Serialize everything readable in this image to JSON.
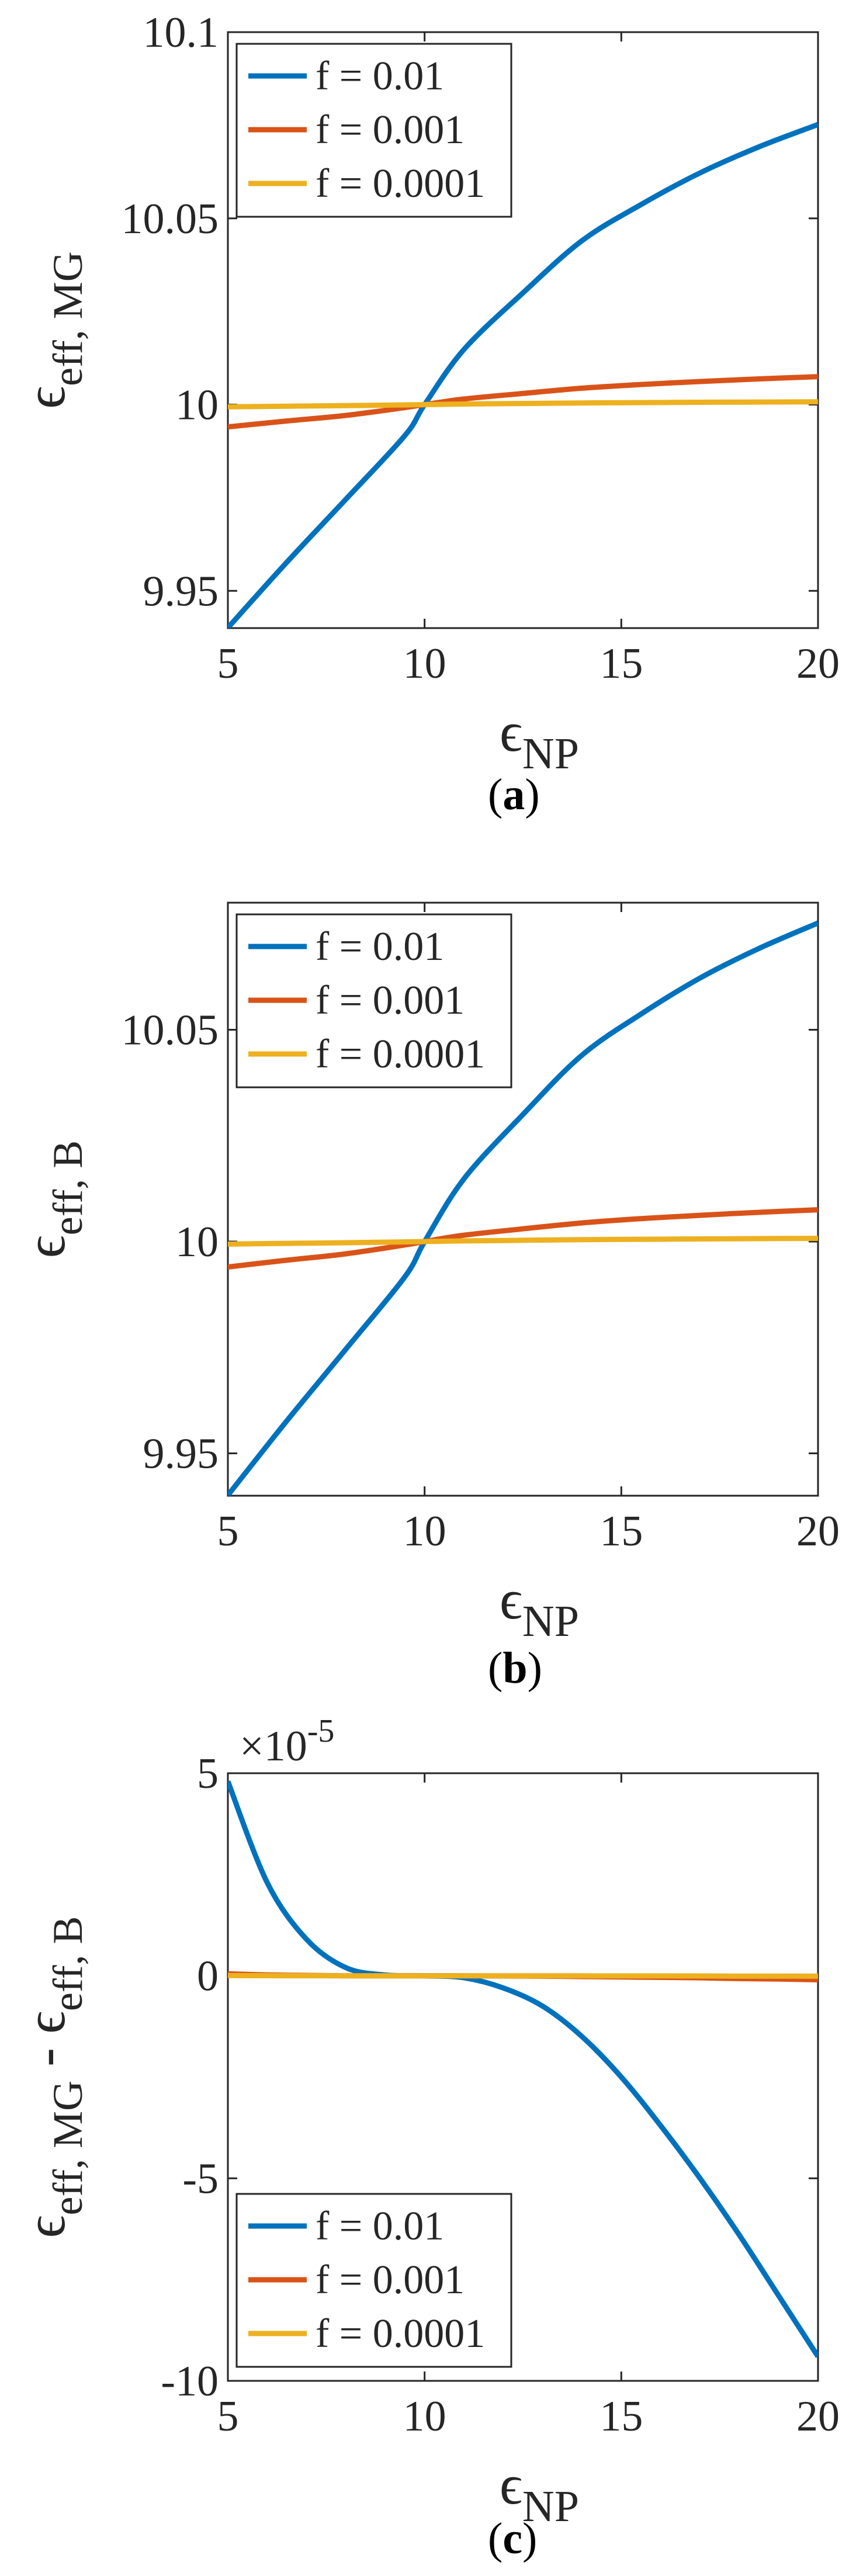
{
  "chart_data": [
    {
      "type": "line",
      "panel_label": "a",
      "xlabel": "ϵ",
      "xlabel_sub": "NP",
      "ylabel": "ϵ",
      "ylabel_sub": "eff, MG",
      "xlim": [
        5,
        20
      ],
      "ylim": [
        9.94,
        10.1
      ],
      "xticks": [
        5,
        10,
        15,
        20
      ],
      "xtick_labels": [
        "5",
        "10",
        "15",
        "20"
      ],
      "yticks": [
        9.95,
        10,
        10.05,
        10.1
      ],
      "ytick_labels": [
        "9.95",
        "10",
        "10.05",
        "10.1"
      ],
      "exponent_label": "",
      "legend_position": "top-left",
      "x": [
        5,
        6.5,
        8,
        9.5,
        10,
        11,
        12.5,
        14,
        15.5,
        17,
        18.5,
        20
      ],
      "series": [
        {
          "name": "f = 0.01",
          "color": "#0072BD",
          "values": [
            9.9401,
            9.9577,
            9.9746,
            9.9917,
            10.0,
            10.0148,
            10.03,
            10.044,
            10.0537,
            10.0622,
            10.0692,
            10.0752
          ]
        },
        {
          "name": "f = 0.001",
          "color": "#D95319",
          "values": [
            9.994,
            9.9956,
            9.9971,
            9.9992,
            10.0,
            10.0015,
            10.003,
            10.0044,
            10.0054,
            10.0062,
            10.0069,
            10.0075
          ]
        },
        {
          "name": "f = 0.0001",
          "color": "#EDB120",
          "values": [
            9.9994,
            9.99957,
            9.99972,
            9.99992,
            10.0,
            10.00015,
            10.0003,
            10.00044,
            10.00054,
            10.00062,
            10.00069,
            10.00075
          ]
        }
      ]
    },
    {
      "type": "line",
      "panel_label": "b",
      "xlabel": "ϵ",
      "xlabel_sub": "NP",
      "ylabel": "ϵ",
      "ylabel_sub": "eff, B",
      "xlim": [
        5,
        20
      ],
      "ylim": [
        9.94,
        10.08
      ],
      "xticks": [
        5,
        10,
        15,
        20
      ],
      "xtick_labels": [
        "5",
        "10",
        "15",
        "20"
      ],
      "yticks": [
        9.95,
        10,
        10.05
      ],
      "ytick_labels": [
        "9.95",
        "10",
        "10.05"
      ],
      "exponent_label": "",
      "legend_position": "top-left",
      "x": [
        5,
        6.5,
        8,
        9.5,
        10,
        11,
        12.5,
        14,
        15.5,
        17,
        18.5,
        20
      ],
      "series": [
        {
          "name": "f = 0.01",
          "color": "#0072BD",
          "values": [
            9.9401,
            9.9577,
            9.9746,
            9.9917,
            10.0,
            10.0148,
            10.03,
            10.044,
            10.0537,
            10.0622,
            10.0692,
            10.0752
          ]
        },
        {
          "name": "f = 0.001",
          "color": "#D95319",
          "values": [
            9.994,
            9.9956,
            9.9971,
            9.9992,
            10.0,
            10.0015,
            10.003,
            10.0044,
            10.0054,
            10.0062,
            10.0069,
            10.0075
          ]
        },
        {
          "name": "f = 0.0001",
          "color": "#EDB120",
          "values": [
            9.9994,
            9.99957,
            9.99972,
            9.99992,
            10.0,
            10.00015,
            10.0003,
            10.00044,
            10.00054,
            10.00062,
            10.00069,
            10.00075
          ]
        }
      ]
    },
    {
      "type": "line",
      "panel_label": "c",
      "xlabel": "ϵ",
      "xlabel_sub": "NP",
      "ylabel": "ϵ",
      "ylabel_sub": "eff, MG",
      "ylabel_mid": " - ϵ",
      "ylabel_sub2": "eff, B",
      "xlim": [
        5,
        20
      ],
      "ylim": [
        -10,
        5
      ],
      "xticks": [
        5,
        10,
        15,
        20
      ],
      "xtick_labels": [
        "5",
        "10",
        "15",
        "20"
      ],
      "yticks": [
        -10,
        -5,
        0,
        5
      ],
      "ytick_labels": [
        "-10",
        "-5",
        "0",
        "5"
      ],
      "exponent_label": "×10",
      "exponent_power": "-5",
      "legend_position": "bottom-left",
      "x": [
        5,
        6,
        7,
        8,
        9,
        10,
        11,
        12,
        13,
        14,
        15,
        16,
        17,
        18,
        19,
        20
      ],
      "series": [
        {
          "name": "f = 0.01",
          "color": "#0072BD",
          "values": [
            4.8,
            2.3,
            0.9,
            0.2,
            0.02,
            0.0,
            -0.05,
            -0.3,
            -0.75,
            -1.5,
            -2.5,
            -3.7,
            -5.0,
            -6.4,
            -7.9,
            -9.4
          ]
        },
        {
          "name": "f = 0.001",
          "color": "#D95319",
          "values": [
            0.05,
            0.02,
            0.01,
            0.0,
            0.0,
            0.0,
            0.0,
            -0.005,
            -0.01,
            -0.02,
            -0.03,
            -0.04,
            -0.05,
            -0.07,
            -0.08,
            -0.1
          ]
        },
        {
          "name": "f = 0.0001",
          "color": "#EDB120",
          "values": [
            0.005,
            0.002,
            0.001,
            0.0,
            0.0,
            0.0,
            0.0,
            0.0,
            -0.001,
            -0.002,
            -0.003,
            -0.004,
            -0.005,
            -0.007,
            -0.008,
            -0.01
          ]
        }
      ]
    }
  ]
}
